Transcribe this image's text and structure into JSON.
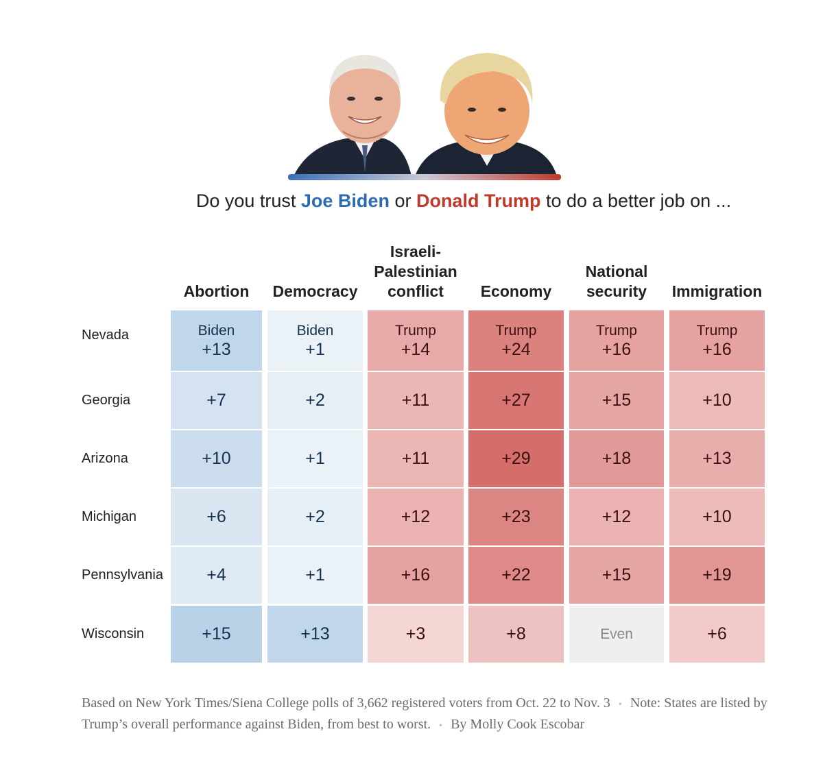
{
  "question": {
    "prefix": "Do you trust ",
    "candidate_a": "Joe Biden",
    "middle": " or ",
    "candidate_b": "Donald Trump",
    "suffix": " to do a better job on ..."
  },
  "colors": {
    "biden": "#2d6cb0",
    "trump": "#c0392b",
    "even": "#efefef"
  },
  "chart_data": {
    "type": "heatmap",
    "columns": [
      "Abortion",
      "Democracy",
      "Israeli-Palestinian conflict",
      "Economy",
      "National security",
      "Immigration"
    ],
    "rows": [
      "Nevada",
      "Georgia",
      "Arizona",
      "Michigan",
      "Pennsylvania",
      "Wisconsin"
    ],
    "cells": [
      [
        {
          "lead": "Biden",
          "margin": 13
        },
        {
          "lead": "Biden",
          "margin": 1
        },
        {
          "lead": "Trump",
          "margin": 14
        },
        {
          "lead": "Trump",
          "margin": 24
        },
        {
          "lead": "Trump",
          "margin": 16
        },
        {
          "lead": "Trump",
          "margin": 16
        }
      ],
      [
        {
          "lead": "Biden",
          "margin": 7
        },
        {
          "lead": "Biden",
          "margin": 2
        },
        {
          "lead": "Trump",
          "margin": 11
        },
        {
          "lead": "Trump",
          "margin": 27
        },
        {
          "lead": "Trump",
          "margin": 15
        },
        {
          "lead": "Trump",
          "margin": 10
        }
      ],
      [
        {
          "lead": "Biden",
          "margin": 10
        },
        {
          "lead": "Biden",
          "margin": 1
        },
        {
          "lead": "Trump",
          "margin": 11
        },
        {
          "lead": "Trump",
          "margin": 29
        },
        {
          "lead": "Trump",
          "margin": 18
        },
        {
          "lead": "Trump",
          "margin": 13
        }
      ],
      [
        {
          "lead": "Biden",
          "margin": 6
        },
        {
          "lead": "Biden",
          "margin": 2
        },
        {
          "lead": "Trump",
          "margin": 12
        },
        {
          "lead": "Trump",
          "margin": 23
        },
        {
          "lead": "Trump",
          "margin": 12
        },
        {
          "lead": "Trump",
          "margin": 10
        }
      ],
      [
        {
          "lead": "Biden",
          "margin": 4
        },
        {
          "lead": "Biden",
          "margin": 1
        },
        {
          "lead": "Trump",
          "margin": 16
        },
        {
          "lead": "Trump",
          "margin": 22
        },
        {
          "lead": "Trump",
          "margin": 15
        },
        {
          "lead": "Trump",
          "margin": 19
        }
      ],
      [
        {
          "lead": "Biden",
          "margin": 15
        },
        {
          "lead": "Biden",
          "margin": 13
        },
        {
          "lead": "Trump",
          "margin": 3
        },
        {
          "lead": "Trump",
          "margin": 8
        },
        {
          "lead": "Even",
          "margin": 0
        },
        {
          "lead": "Trump",
          "margin": 6
        }
      ]
    ],
    "even_label": "Even"
  },
  "footer": {
    "source": "Based on New York Times/Siena College polls of 3,662 registered voters from Oct. 22 to Nov. 3",
    "note": "Note: States are listed by Trump’s overall performance against Biden, from best to worst.",
    "byline": "By Molly Cook Escobar"
  }
}
